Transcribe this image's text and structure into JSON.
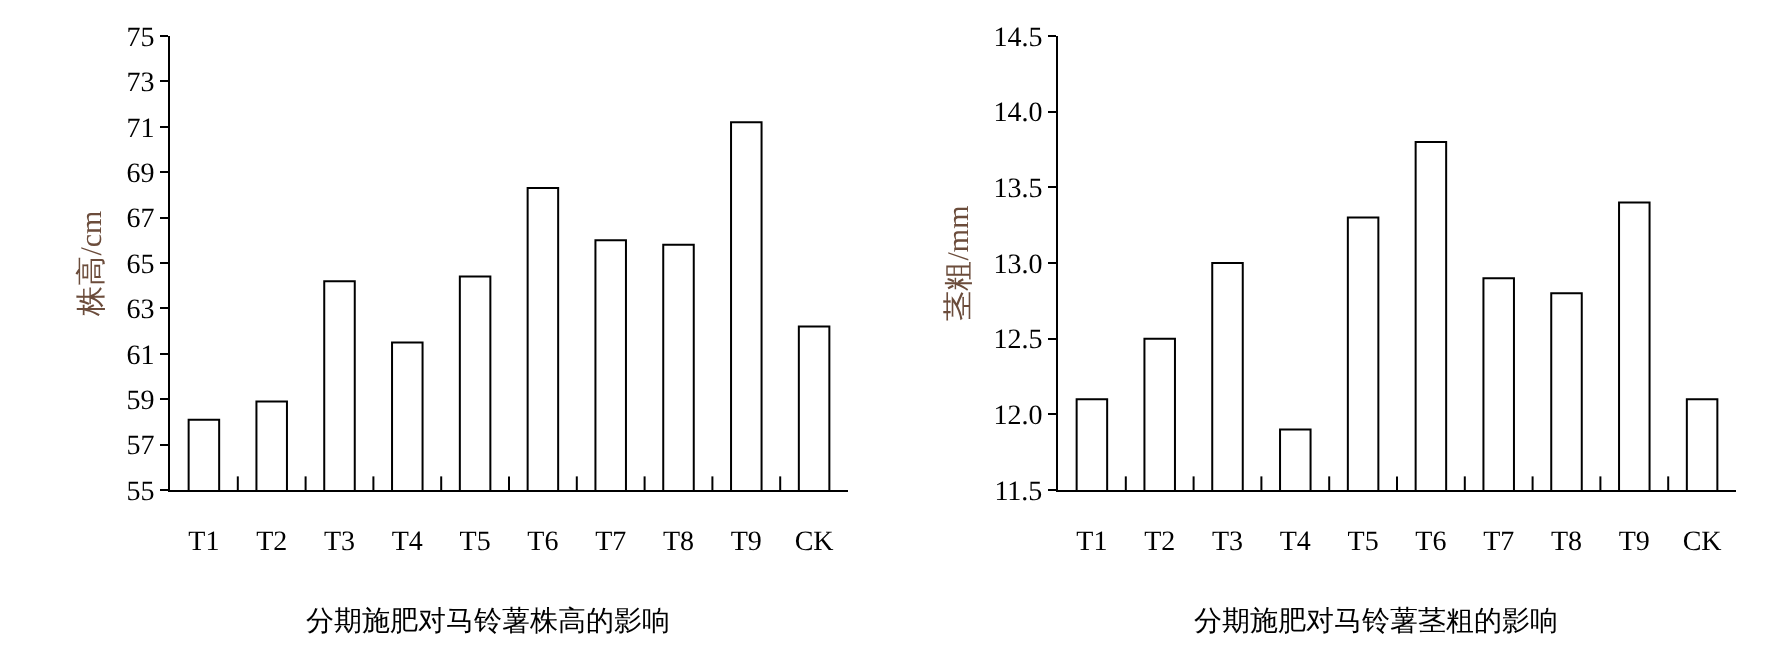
{
  "chart_data": [
    {
      "type": "bar",
      "title": "分期施肥对马铃薯株高的影响",
      "ylabel": "株高/cm",
      "categories": [
        "T1",
        "T2",
        "T3",
        "T4",
        "T5",
        "T6",
        "T7",
        "T8",
        "T9",
        "CK"
      ],
      "values": [
        58.1,
        58.9,
        64.2,
        61.5,
        64.4,
        68.3,
        66.0,
        65.8,
        71.2,
        62.2
      ],
      "color": "#ffffff",
      "ylim": [
        55,
        75
      ],
      "yticks": [
        55,
        57,
        59,
        61,
        63,
        65,
        67,
        69,
        71,
        73,
        75
      ],
      "grid": false
    },
    {
      "type": "bar",
      "title": "分期施肥对马铃薯茎粗的影响",
      "ylabel": "茎粗/mm",
      "categories": [
        "T1",
        "T2",
        "T3",
        "T4",
        "T5",
        "T6",
        "T7",
        "T8",
        "T9",
        "CK"
      ],
      "values": [
        12.1,
        12.5,
        13.0,
        11.9,
        13.3,
        13.8,
        12.9,
        12.8,
        13.4,
        12.1
      ],
      "color": "#ffffff",
      "ylim": [
        11.5,
        14.5
      ],
      "yticks": [
        {
          "value": 11.5,
          "label": "11.5"
        },
        {
          "value": 12,
          "label": "12.0"
        },
        {
          "value": 12.5,
          "label": "12.5"
        },
        {
          "value": 13,
          "label": "13.0"
        },
        {
          "value": 13.5,
          "label": "13.5"
        },
        {
          "value": 14,
          "label": "14.0"
        },
        {
          "value": 14.5,
          "label": "14.5"
        }
      ],
      "grid": false
    }
  ]
}
